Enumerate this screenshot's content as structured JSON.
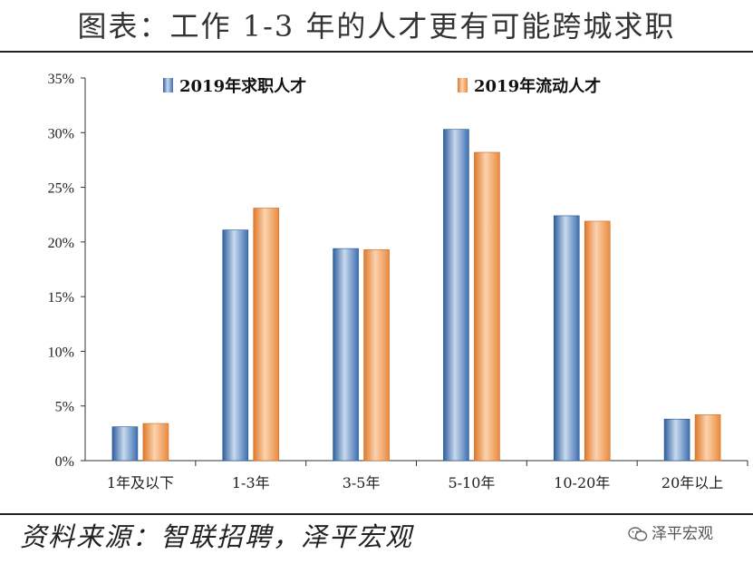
{
  "title": "图表：工作 1-3 年的人才更有可能跨城求职",
  "source": "资料来源：智联招聘，泽平宏观",
  "watermark": "泽平宏观",
  "colors": {
    "series_1": "#4a7fc1",
    "series_2": "#f09a4e"
  },
  "chart_data": {
    "type": "bar",
    "categories": [
      "1年及以下",
      "1-3年",
      "3-5年",
      "5-10年",
      "10-20年",
      "20年以上"
    ],
    "series": [
      {
        "name": "2019年求职人才",
        "values": [
          3.1,
          21.1,
          19.4,
          30.3,
          22.4,
          3.8
        ]
      },
      {
        "name": "2019年流动人才",
        "values": [
          3.4,
          23.1,
          19.3,
          28.2,
          21.9,
          4.2
        ]
      }
    ],
    "ylim": [
      0,
      35
    ],
    "yticks": [
      0,
      5,
      10,
      15,
      20,
      25,
      30,
      35
    ],
    "ytick_labels": [
      "0%",
      "5%",
      "10%",
      "15%",
      "20%",
      "25%",
      "30%",
      "35%"
    ],
    "legend_position": "top",
    "grid": false
  }
}
